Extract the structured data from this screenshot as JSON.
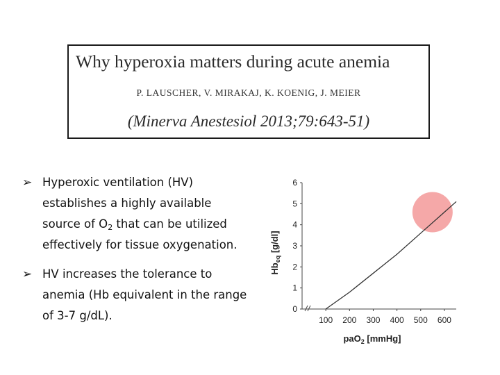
{
  "title_box": {
    "title": "Why hyperoxia matters during acute anemia",
    "authors": "P. LAUSCHER, V. MIRAKAJ, K. KOENIG, J. MEIER",
    "citation": "(Minerva Anestesiol 2013;79:643-51)"
  },
  "bullets": [
    {
      "icon": "arrow-bullet-icon",
      "text_before": "Hyperoxic ventilation (HV) establishes a highly available source of O",
      "sub": "2",
      "text_after": " that can be utilized effectively for tissue oxygenation."
    },
    {
      "icon": "arrow-bullet-icon",
      "text": "HV increases the tolerance to anemia (Hb equivalent in the range of 3-7 g/dL)."
    }
  ],
  "chart_data": {
    "type": "line",
    "title": "",
    "xlabel": {
      "main": "paO",
      "sub": "2",
      "unit": " [mmHg]"
    },
    "ylabel": {
      "main": "Hb",
      "sub": "eq",
      "unit": " [g/dl]"
    },
    "x_ticks": [
      100,
      200,
      300,
      400,
      500,
      600
    ],
    "y_ticks": [
      0,
      1,
      2,
      3,
      4,
      5,
      6
    ],
    "xlim": [
      0,
      650
    ],
    "ylim": [
      0,
      6
    ],
    "axis_break": true,
    "grid": false,
    "series": [
      {
        "color": "#333333",
        "x": [
          100,
          200,
          300,
          400,
          500,
          600,
          650
        ],
        "y": [
          0.0,
          0.8,
          1.7,
          2.6,
          3.6,
          4.6,
          5.1
        ]
      }
    ],
    "highlight": {
      "x": 550,
      "y": 4.6,
      "color": "#f28b8b"
    }
  }
}
